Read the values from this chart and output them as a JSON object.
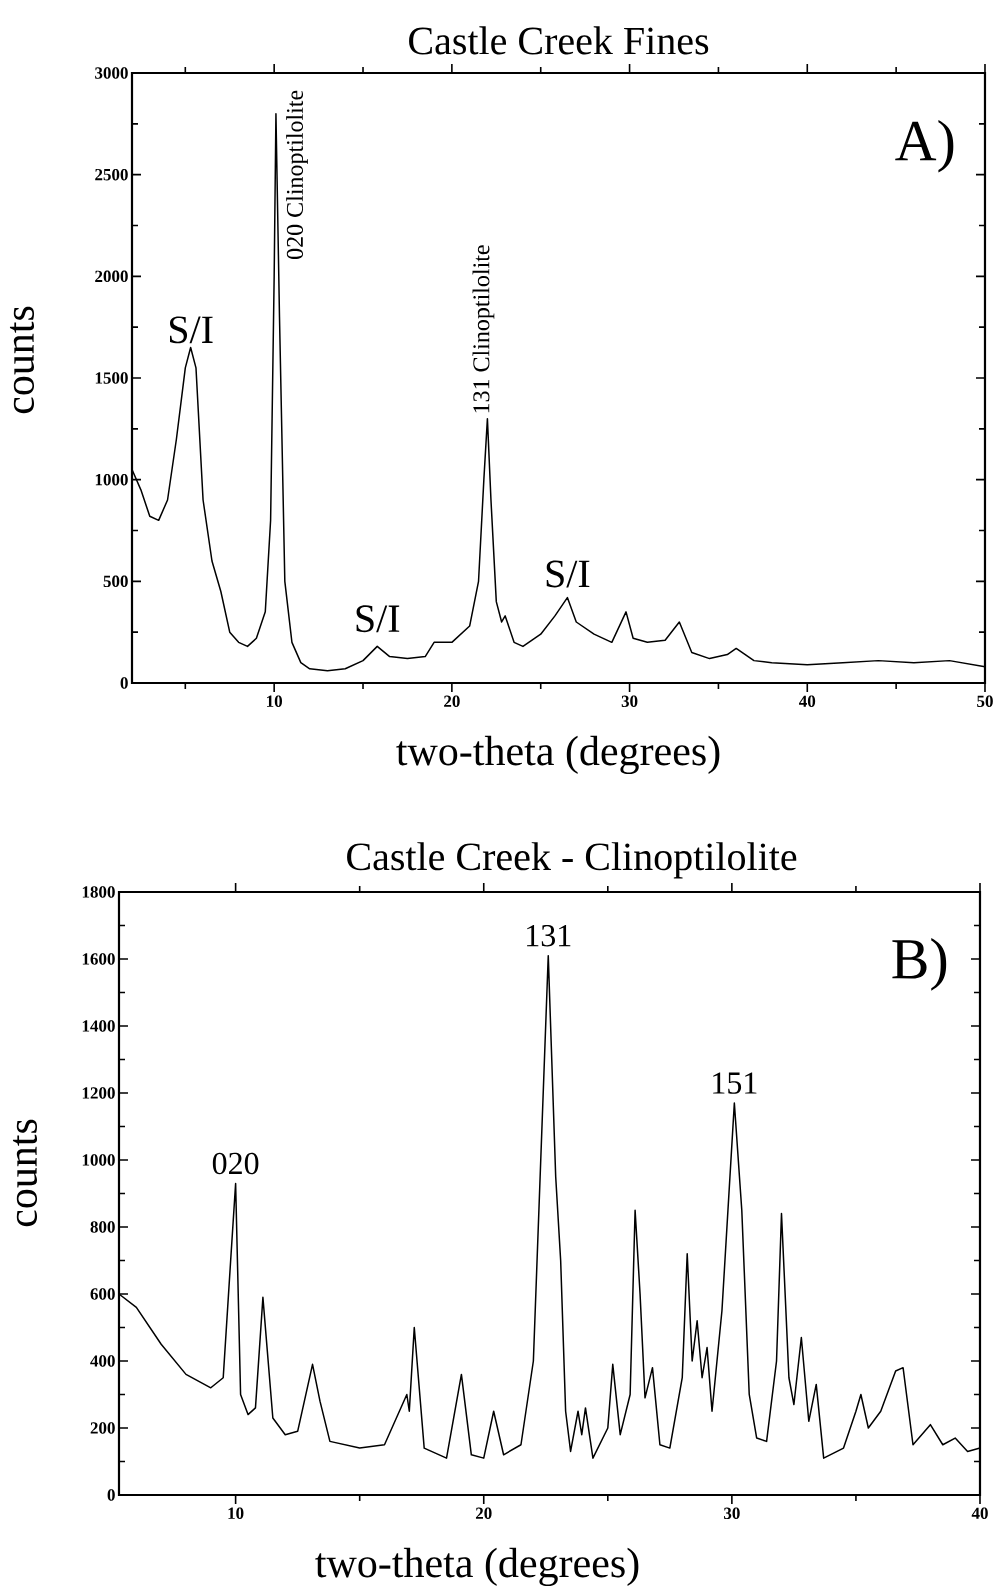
{
  "chart_data": [
    {
      "type": "line",
      "title": "Castle Creek Fines",
      "xlabel": "two-theta  (degrees)",
      "ylabel": "counts",
      "color": "#000000",
      "x": [
        2,
        2.5,
        3,
        3.5,
        4,
        4.5,
        5,
        5.3,
        5.6,
        6,
        6.5,
        7,
        7.5,
        8,
        8.5,
        9,
        9.5,
        9.8,
        10,
        10.1,
        10.3,
        10.6,
        11,
        11.5,
        12,
        13,
        14,
        15,
        15.8,
        16.5,
        17.5,
        18.5,
        19,
        20,
        21,
        21.5,
        21.8,
        22,
        22.2,
        22.5,
        22.8,
        23,
        23.5,
        24,
        25,
        25.8,
        26.5,
        27,
        28,
        29,
        29.8,
        30.2,
        31,
        32,
        32.8,
        33.5,
        34.5,
        35.5,
        36,
        37,
        38,
        40,
        42,
        44,
        46,
        48,
        50
      ],
      "values": [
        1050,
        950,
        820,
        800,
        900,
        1200,
        1550,
        1650,
        1550,
        900,
        600,
        450,
        250,
        200,
        180,
        220,
        350,
        800,
        2000,
        2800,
        1800,
        500,
        200,
        100,
        70,
        60,
        70,
        110,
        180,
        130,
        120,
        130,
        200,
        200,
        280,
        500,
        1000,
        1300,
        900,
        400,
        300,
        330,
        200,
        180,
        240,
        330,
        420,
        300,
        240,
        200,
        350,
        220,
        200,
        210,
        300,
        150,
        120,
        140,
        170,
        110,
        100,
        90,
        100,
        110,
        100,
        110,
        80
      ],
      "xlim": [
        2,
        50
      ],
      "ylim": [
        0,
        3000
      ],
      "xticks": [
        {
          "value": 5,
          "label": null
        },
        10,
        {
          "value": 15,
          "label": null
        },
        20,
        {
          "value": 25,
          "label": null
        },
        30,
        {
          "value": 35,
          "label": null
        },
        40,
        {
          "value": 45,
          "label": null
        },
        50
      ],
      "yticks": [
        0,
        {
          "value": 250,
          "label": null
        },
        500,
        {
          "value": 750,
          "label": null
        },
        1000,
        {
          "value": 1250,
          "label": null
        },
        1500,
        {
          "value": 1750,
          "label": null
        },
        2000,
        {
          "value": 2250,
          "label": null
        },
        2500,
        {
          "value": 2750,
          "label": null
        },
        3000
      ],
      "annotations": [
        "A)",
        {
          "text": "S/I",
          "x": 5.3,
          "y": 1650
        },
        {
          "text": "020  Clinoptilolite",
          "x": 10.1,
          "y": 2800
        },
        {
          "text": "S/I",
          "x": 15.8,
          "y": 180
        },
        {
          "text": "131  Clinoptilolite",
          "x": 22,
          "y": 1300
        },
        {
          "text": "S/I",
          "x": 26.5,
          "y": 420
        }
      ]
    },
    {
      "type": "line",
      "title": "Castle Creek - Clinoptilolite",
      "xlabel": "two-theta  (degrees)",
      "ylabel": "counts",
      "color": "#000000",
      "x": [
        5.3,
        6,
        7,
        8,
        9,
        9.5,
        9.8,
        10,
        10.2,
        10.5,
        10.8,
        11.1,
        11.5,
        12,
        12.5,
        13.1,
        13.4,
        13.8,
        15,
        16,
        16.9,
        17,
        17.2,
        17.6,
        18.5,
        19.1,
        19.5,
        20,
        20.4,
        20.8,
        21.5,
        22,
        22.6,
        22.9,
        23.1,
        23.3,
        23.5,
        23.8,
        23.95,
        24.1,
        24.4,
        25,
        25.2,
        25.5,
        25.9,
        26.1,
        26.3,
        26.5,
        26.8,
        27.1,
        27.5,
        28,
        28.2,
        28.4,
        28.6,
        28.8,
        29,
        29.2,
        29.6,
        30.1,
        30.4,
        30.7,
        31,
        31.4,
        31.8,
        32,
        32.3,
        32.5,
        32.8,
        33.1,
        33.4,
        33.7,
        34.5,
        35,
        35.2,
        35.5,
        36,
        36.6,
        36.9,
        37.3,
        38,
        38.5,
        39,
        39.5,
        40
      ],
      "values": [
        600,
        560,
        450,
        360,
        320,
        350,
        700,
        930,
        300,
        240,
        260,
        590,
        230,
        180,
        190,
        390,
        280,
        160,
        140,
        150,
        300,
        250,
        500,
        140,
        110,
        360,
        120,
        110,
        250,
        120,
        150,
        400,
        1610,
        950,
        700,
        250,
        130,
        250,
        180,
        260,
        110,
        200,
        390,
        180,
        300,
        850,
        600,
        290,
        380,
        150,
        140,
        350,
        720,
        400,
        520,
        350,
        440,
        250,
        550,
        1170,
        850,
        300,
        170,
        160,
        400,
        840,
        350,
        270,
        470,
        220,
        330,
        110,
        140,
        250,
        300,
        200,
        250,
        370,
        380,
        150,
        210,
        150,
        170,
        130,
        140
      ],
      "xlim": [
        5.3,
        40
      ],
      "ylim": [
        0,
        1800
      ],
      "xticks": [
        10,
        {
          "value": 15,
          "label": null
        },
        20,
        {
          "value": 25,
          "label": null
        },
        30,
        {
          "value": 35,
          "label": null
        },
        40
      ],
      "yticks": [
        0,
        {
          "value": 100,
          "label": null
        },
        200,
        {
          "value": 300,
          "label": null
        },
        400,
        {
          "value": 500,
          "label": null
        },
        600,
        {
          "value": 700,
          "label": null
        },
        800,
        {
          "value": 900,
          "label": null
        },
        1000,
        {
          "value": 1100,
          "label": null
        },
        1200,
        {
          "value": 1300,
          "label": null
        },
        1400,
        {
          "value": 1500,
          "label": null
        },
        1600,
        {
          "value": 1700,
          "label": null
        },
        1800
      ],
      "annotations": [
        "B)",
        {
          "text": "020",
          "x": 10,
          "y": 930
        },
        {
          "text": "131",
          "x": 22.6,
          "y": 1610
        },
        {
          "text": "151",
          "x": 30.1,
          "y": 1170
        }
      ]
    }
  ]
}
